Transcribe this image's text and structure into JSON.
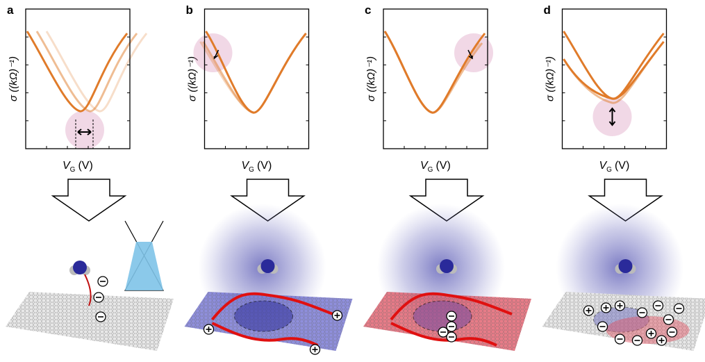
{
  "panels": [
    {
      "label": "a",
      "y_label": "σ ((kΩ)⁻¹)",
      "x_symbol": "V",
      "x_sub": "G",
      "x_unit": "(V)"
    },
    {
      "label": "b",
      "y_label": "σ ((kΩ)⁻¹)",
      "x_symbol": "V",
      "x_sub": "G",
      "x_unit": "(V)"
    },
    {
      "label": "c",
      "y_label": "σ ((kΩ)⁻¹)",
      "x_symbol": "V",
      "x_sub": "G",
      "x_unit": "(V)"
    },
    {
      "label": "d",
      "y_label": "σ ((kΩ)⁻¹)",
      "x_symbol": "V",
      "x_sub": "G",
      "x_unit": "(V)"
    }
  ]
}
